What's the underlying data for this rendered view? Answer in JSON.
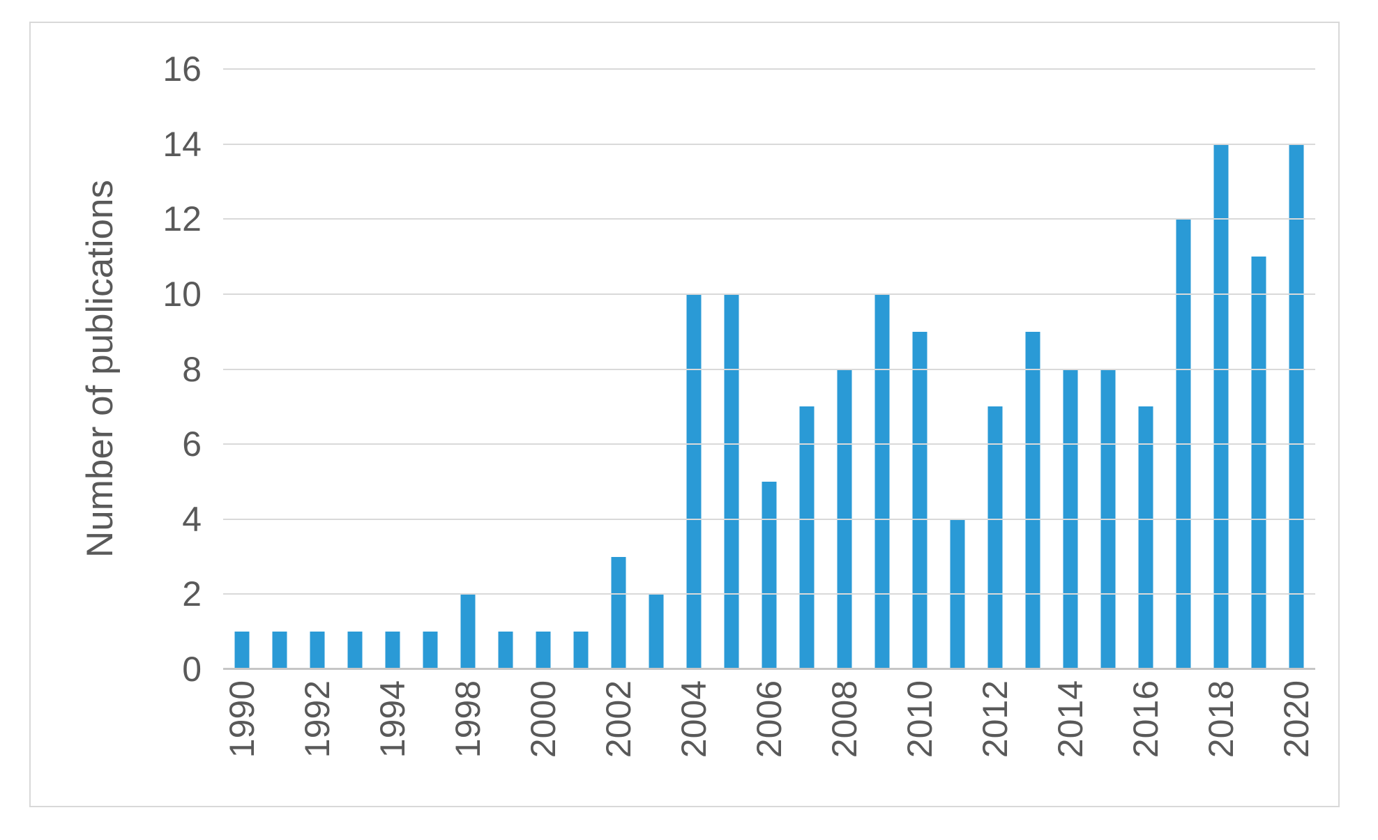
{
  "chart": {
    "colors": {
      "bar": "#2a9ad6",
      "gridline": "#d9d9d9",
      "axis_line": "#c6c6c6",
      "text": "#595959",
      "frame_border": "#d8d8d8",
      "background": "#ffffff"
    }
  },
  "chart_data": {
    "type": "bar",
    "title": "",
    "xlabel": "",
    "ylabel": "Number of publications",
    "categories": [
      "1990",
      "1991",
      "1992",
      "1993",
      "1994",
      "1995",
      "1998",
      "1999",
      "2000",
      "2001",
      "2002",
      "2003",
      "2004",
      "2005",
      "2006",
      "2007",
      "2008",
      "2009",
      "2010",
      "2011",
      "2012",
      "2013",
      "2014",
      "2015",
      "2016",
      "2017",
      "2018",
      "2019",
      "2020"
    ],
    "values": [
      1,
      1,
      1,
      1,
      1,
      1,
      2,
      1,
      1,
      1,
      3,
      2,
      10,
      10,
      5,
      7,
      8,
      10,
      9,
      4,
      7,
      9,
      8,
      8,
      7,
      12,
      14,
      11,
      14
    ],
    "ylim": [
      0,
      16
    ],
    "yticks": [
      0,
      2,
      4,
      6,
      8,
      10,
      12,
      14,
      16
    ],
    "x_tick_labels": [
      "1990",
      "1992",
      "1994",
      "1998",
      "2000",
      "2002",
      "2004",
      "2006",
      "2008",
      "2010",
      "2012",
      "2014",
      "2016",
      "2018",
      "2020"
    ],
    "label_every": 2,
    "grid": "horizontal",
    "legend": "none",
    "bar_color": "#2a9ad6"
  }
}
